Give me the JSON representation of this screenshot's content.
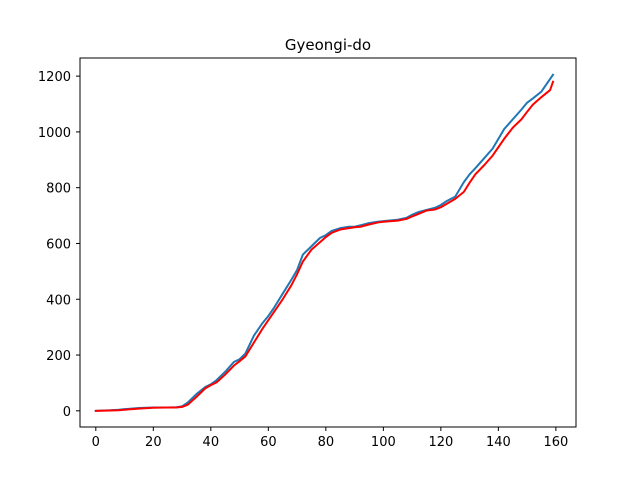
{
  "chart_data": {
    "type": "line",
    "title": "Gyeongi-do",
    "xlabel": "",
    "ylabel": "",
    "xlim": [
      -5.5,
      167
    ],
    "ylim": [
      -58,
      1265
    ],
    "x_ticks": [
      0,
      20,
      40,
      60,
      80,
      100,
      120,
      140,
      160
    ],
    "y_ticks": [
      0,
      200,
      400,
      600,
      800,
      1000,
      1200
    ],
    "grid": false,
    "legend": "none",
    "series": [
      {
        "color": "#1f77b4",
        "x": [
          0,
          5,
          8,
          10,
          15,
          20,
          25,
          28,
          30,
          32,
          35,
          38,
          40,
          42,
          45,
          48,
          50,
          52,
          55,
          58,
          60,
          62,
          65,
          68,
          70,
          72,
          75,
          78,
          80,
          82,
          85,
          88,
          90,
          92,
          95,
          98,
          100,
          105,
          108,
          110,
          112,
          115,
          118,
          120,
          122,
          125,
          128,
          130,
          132,
          135,
          138,
          140,
          142,
          145,
          148,
          150,
          152,
          155,
          158,
          159
        ],
        "y": [
          0,
          2,
          4,
          6,
          10,
          12,
          12,
          13,
          16,
          30,
          60,
          85,
          95,
          110,
          140,
          175,
          185,
          205,
          270,
          315,
          340,
          370,
          420,
          470,
          505,
          560,
          590,
          620,
          630,
          645,
          655,
          660,
          660,
          665,
          673,
          678,
          680,
          685,
          692,
          703,
          712,
          720,
          728,
          738,
          752,
          768,
          820,
          848,
          870,
          905,
          940,
          975,
          1010,
          1045,
          1080,
          1105,
          1120,
          1145,
          1190,
          1205
        ]
      },
      {
        "color": "#ff0000",
        "x": [
          0,
          5,
          8,
          10,
          15,
          20,
          25,
          28,
          30,
          32,
          35,
          38,
          40,
          42,
          45,
          48,
          50,
          52,
          55,
          58,
          60,
          62,
          65,
          68,
          70,
          72,
          75,
          78,
          80,
          82,
          85,
          88,
          90,
          92,
          95,
          98,
          100,
          105,
          108,
          110,
          112,
          115,
          118,
          120,
          122,
          125,
          128,
          130,
          132,
          135,
          138,
          140,
          142,
          145,
          148,
          150,
          152,
          155,
          158,
          159
        ],
        "y": [
          0,
          1,
          2,
          4,
          8,
          11,
          12,
          12,
          14,
          22,
          50,
          80,
          92,
          102,
          130,
          162,
          178,
          195,
          245,
          295,
          325,
          355,
          400,
          450,
          490,
          535,
          578,
          605,
          623,
          638,
          650,
          655,
          658,
          660,
          668,
          675,
          678,
          682,
          688,
          697,
          705,
          718,
          722,
          730,
          742,
          760,
          785,
          818,
          848,
          880,
          915,
          945,
          975,
          1015,
          1045,
          1072,
          1098,
          1125,
          1150,
          1180
        ]
      }
    ]
  }
}
